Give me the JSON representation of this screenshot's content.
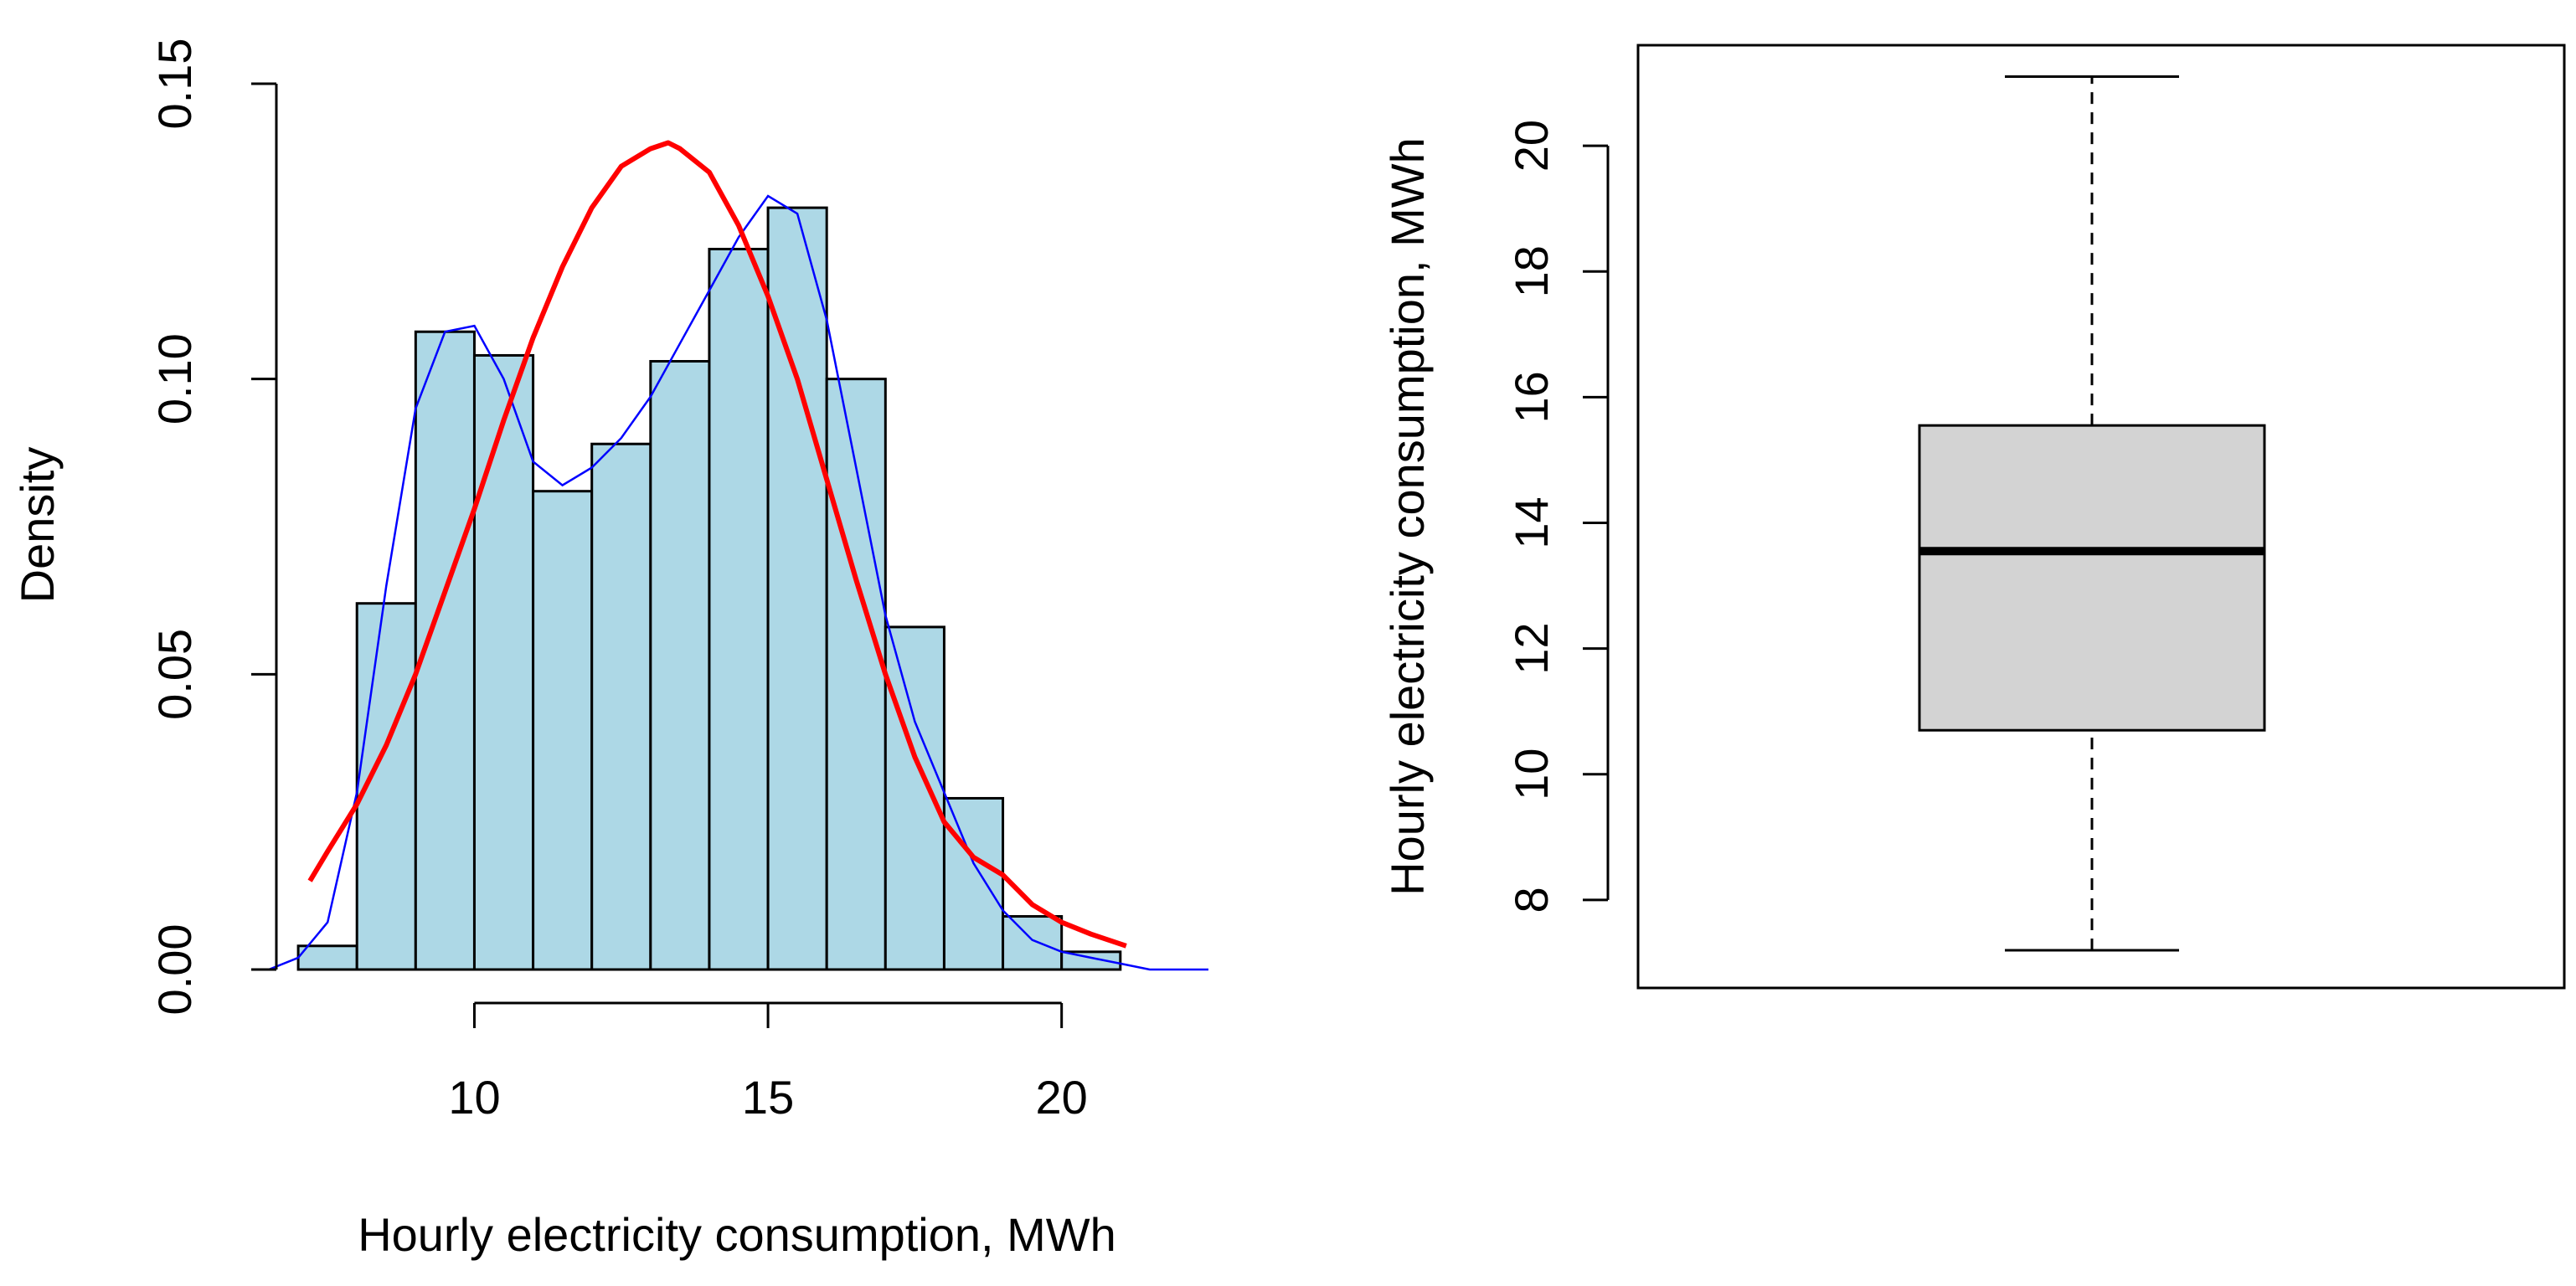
{
  "chart_data": [
    {
      "type": "bar",
      "subtype": "histogram",
      "title": "",
      "xlabel": "Hourly electricity consumption, MWh",
      "ylabel": "Density",
      "xlim": [
        6.2,
        22.6
      ],
      "ylim": [
        0,
        0.15
      ],
      "x_ticks": [
        10,
        15,
        20
      ],
      "x_tick_labels": [
        "10",
        "15",
        "20"
      ],
      "y_ticks": [
        0,
        0.05,
        0.1,
        0.15
      ],
      "y_tick_labels": [
        "0.00",
        "0.05",
        "0.10",
        "0.15"
      ],
      "bin_edges": [
        7,
        8,
        9,
        10,
        11,
        12,
        13,
        14,
        15,
        16,
        17,
        18,
        19,
        20,
        21,
        22
      ],
      "values": [
        0.004,
        0.062,
        0.108,
        0.104,
        0.081,
        0.089,
        0.103,
        0.122,
        0.129,
        0.1,
        0.058,
        0.029,
        0.009,
        0.003,
        0.0
      ],
      "grid": false,
      "colors": {
        "bar_fill": "#add8e6",
        "bar_stroke": "#000000"
      },
      "series": [
        {
          "kind": "line",
          "color": "#0000ff",
          "x": [
            6.5,
            7.0,
            7.5,
            8.0,
            8.5,
            9.0,
            9.5,
            10.0,
            10.5,
            11.0,
            11.5,
            12.0,
            12.5,
            13.0,
            13.5,
            14.0,
            14.5,
            15.0,
            15.5,
            16.0,
            16.5,
            17.0,
            17.5,
            18.0,
            18.5,
            19.0,
            19.5,
            20.0,
            20.5,
            21.0,
            21.5,
            22.5
          ],
          "y": [
            0.0,
            0.002,
            0.008,
            0.03,
            0.065,
            0.095,
            0.108,
            0.109,
            0.1,
            0.086,
            0.082,
            0.085,
            0.09,
            0.097,
            0.106,
            0.115,
            0.124,
            0.131,
            0.128,
            0.11,
            0.085,
            0.06,
            0.042,
            0.03,
            0.018,
            0.01,
            0.005,
            0.003,
            0.002,
            0.001,
            0.0,
            0.0
          ]
        },
        {
          "kind": "line",
          "color": "#ff0000",
          "x": [
            7.2,
            7.5,
            8.0,
            8.5,
            9.0,
            9.5,
            10.0,
            10.5,
            11.0,
            11.5,
            12.0,
            12.5,
            13.0,
            13.3,
            13.5,
            14.0,
            14.5,
            15.0,
            15.5,
            16.0,
            16.5,
            17.0,
            17.5,
            18.0,
            18.5,
            19.0,
            19.5,
            20.0,
            20.5,
            21.1
          ],
          "y": [
            0.015,
            0.02,
            0.028,
            0.038,
            0.05,
            0.064,
            0.078,
            0.093,
            0.107,
            0.119,
            0.129,
            0.136,
            0.139,
            0.14,
            0.139,
            0.135,
            0.126,
            0.114,
            0.1,
            0.083,
            0.066,
            0.05,
            0.036,
            0.025,
            0.019,
            0.016,
            0.011,
            0.008,
            0.006,
            0.004
          ]
        }
      ]
    },
    {
      "type": "box",
      "title": "",
      "xlabel": "",
      "ylabel": "Hourly electricity consumption, MWh",
      "ylim": [
        6.6,
        21.6
      ],
      "y_ticks": [
        8,
        10,
        12,
        14,
        16,
        18,
        20
      ],
      "y_tick_labels": [
        "8",
        "10",
        "12",
        "14",
        "16",
        "18",
        "20"
      ],
      "min": 7.2,
      "q1": 10.7,
      "median": 13.55,
      "q3": 15.55,
      "max": 21.1,
      "grid": false,
      "colors": {
        "box_fill": "#d3d3d3",
        "stroke": "#000000"
      }
    }
  ]
}
